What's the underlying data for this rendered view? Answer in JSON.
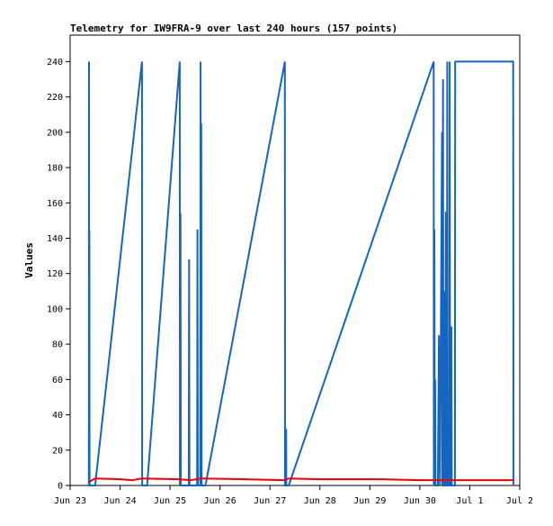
{
  "chart_data": {
    "type": "line",
    "title": "Telemetry for IW9FRA-9 over last 240 hours (157 points)",
    "xlabel": "",
    "ylabel": "Values",
    "xlim": [
      "2023-06-23",
      "2023-07-02"
    ],
    "ylim": [
      0,
      255
    ],
    "x_ticks": [
      "Jun 23",
      "Jun 24",
      "Jun 25",
      "Jun 26",
      "Jun 27",
      "Jun 28",
      "Jun 29",
      "Jun 30",
      "Jul 1",
      "Jul 2"
    ],
    "y_ticks": [
      0,
      20,
      40,
      60,
      80,
      100,
      120,
      140,
      160,
      180,
      200,
      220,
      240
    ],
    "grid": false,
    "series": [
      {
        "color": "#1565c0",
        "points": [
          [
            "2023-06-23T09:00",
            0
          ],
          [
            "2023-06-23T09:05",
            240
          ],
          [
            "2023-06-23T09:10",
            0
          ],
          [
            "2023-06-23T09:15",
            144
          ],
          [
            "2023-06-23T09:20",
            0
          ],
          [
            "2023-06-23T12:00",
            0
          ],
          [
            "2023-06-24T10:30",
            240
          ],
          [
            "2023-06-24T10:35",
            0
          ],
          [
            "2023-06-24T13:00",
            0
          ],
          [
            "2023-06-25T04:40",
            240
          ],
          [
            "2023-06-25T04:45",
            0
          ],
          [
            "2023-06-25T05:00",
            154
          ],
          [
            "2023-06-25T05:10",
            0
          ],
          [
            "2023-06-25T09:00",
            0
          ],
          [
            "2023-06-25T09:10",
            128
          ],
          [
            "2023-06-25T09:20",
            0
          ],
          [
            "2023-06-25T13:00",
            0
          ],
          [
            "2023-06-25T13:10",
            145
          ],
          [
            "2023-06-25T13:20",
            0
          ],
          [
            "2023-06-25T14:30",
            0
          ],
          [
            "2023-06-25T14:40",
            240
          ],
          [
            "2023-06-25T14:45",
            0
          ],
          [
            "2023-06-25T15:00",
            205
          ],
          [
            "2023-06-25T15:10",
            0
          ],
          [
            "2023-06-25T17:00",
            0
          ],
          [
            "2023-06-27T07:10",
            240
          ],
          [
            "2023-06-27T07:15",
            0
          ],
          [
            "2023-06-27T07:40",
            0
          ],
          [
            "2023-06-27T07:45",
            32
          ],
          [
            "2023-06-27T07:50",
            0
          ],
          [
            "2023-06-27T09:00",
            0
          ],
          [
            "2023-06-30T06:40",
            240
          ],
          [
            "2023-06-30T06:45",
            0
          ],
          [
            "2023-06-30T07:00",
            145
          ],
          [
            "2023-06-30T07:10",
            0
          ],
          [
            "2023-06-30T07:20",
            60
          ],
          [
            "2023-06-30T07:30",
            0
          ],
          [
            "2023-06-30T08:40",
            0
          ],
          [
            "2023-06-30T09:10",
            85
          ],
          [
            "2023-06-30T09:40",
            0
          ],
          [
            "2023-06-30T10:40",
            200
          ],
          [
            "2023-06-30T10:50",
            0
          ],
          [
            "2023-06-30T11:10",
            230
          ],
          [
            "2023-06-30T11:20",
            0
          ],
          [
            "2023-06-30T11:50",
            0
          ],
          [
            "2023-06-30T12:00",
            110
          ],
          [
            "2023-06-30T12:10",
            0
          ],
          [
            "2023-06-30T12:30",
            155
          ],
          [
            "2023-06-30T12:40",
            0
          ],
          [
            "2023-06-30T13:00",
            0
          ],
          [
            "2023-06-30T13:10",
            240
          ],
          [
            "2023-06-30T13:20",
            0
          ],
          [
            "2023-06-30T14:10",
            0
          ],
          [
            "2023-06-30T14:20",
            240
          ],
          [
            "2023-06-30T14:30",
            0
          ],
          [
            "2023-06-30T15:00",
            0
          ],
          [
            "2023-06-30T15:10",
            90
          ],
          [
            "2023-06-30T15:20",
            0
          ],
          [
            "2023-06-30T16:50",
            0
          ],
          [
            "2023-06-30T17:00",
            240
          ],
          [
            "2023-07-01T20:50",
            240
          ],
          [
            "2023-07-01T21:00",
            0
          ]
        ]
      },
      {
        "color": "#ee0000",
        "points": [
          [
            "2023-06-23T09:00",
            2
          ],
          [
            "2023-06-23T12:00",
            4
          ],
          [
            "2023-06-24T00:00",
            3.5
          ],
          [
            "2023-06-24T06:00",
            3
          ],
          [
            "2023-06-24T10:35",
            4
          ],
          [
            "2023-06-25T04:00",
            3.5
          ],
          [
            "2023-06-25T10:00",
            3
          ],
          [
            "2023-06-25T15:00",
            4
          ],
          [
            "2023-06-26T12:00",
            3.5
          ],
          [
            "2023-06-27T07:15",
            3
          ],
          [
            "2023-06-27T09:00",
            4
          ],
          [
            "2023-06-28T00:00",
            3.5
          ],
          [
            "2023-06-29T06:00",
            3.5
          ],
          [
            "2023-06-30T00:00",
            3
          ],
          [
            "2023-06-30T12:00",
            3
          ],
          [
            "2023-06-30T17:00",
            3
          ],
          [
            "2023-07-01T21:00",
            3
          ]
        ]
      }
    ]
  }
}
